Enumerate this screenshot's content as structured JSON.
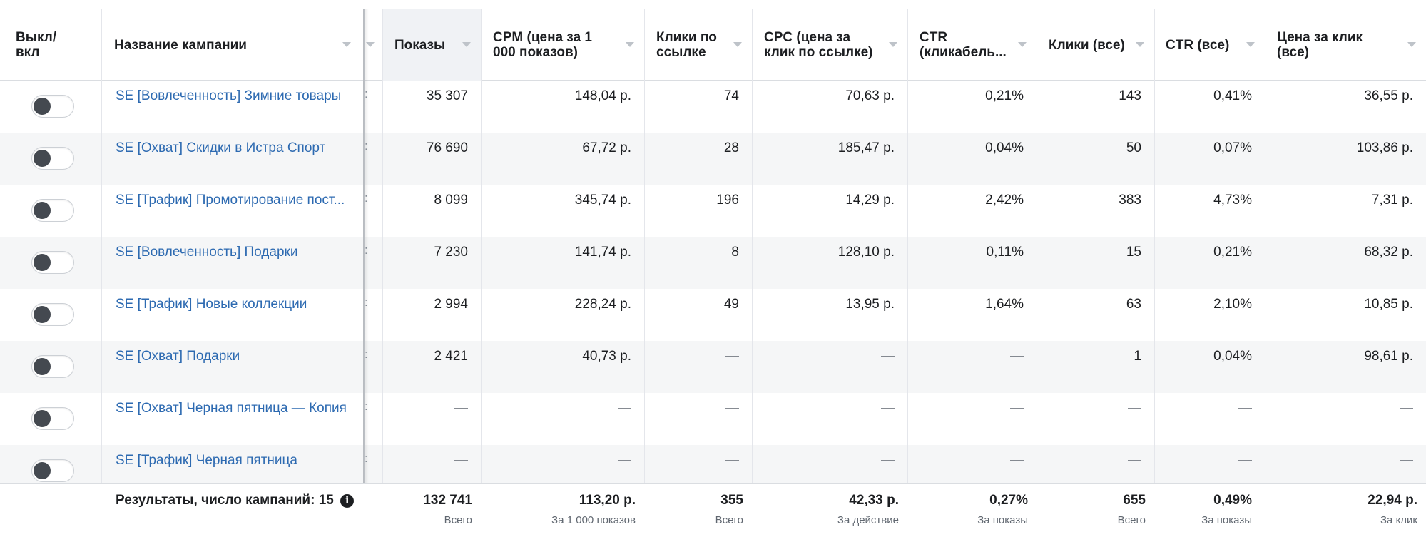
{
  "columns": {
    "toggle": "Выкл/\nвкл",
    "name": "Название кампании",
    "impressions": "Показы",
    "cpm": "CPM (цена за 1\n000 показов)",
    "link_clicks": "Клики по\nссылке",
    "cpc": "CPC (цена за\nклик по ссылке)",
    "ctr": "CTR\n(кликабель...",
    "clicks_all": "Клики (все)",
    "ctr_all": "CTR (все)",
    "cost_per_click": "Цена за клик\n(все)"
  },
  "rows": [
    {
      "name": "SE [Вовлеченность] Зимние товары",
      "impressions": "35 307",
      "cpm": "148,04 р.",
      "link_clicks": "74",
      "cpc": "70,63 р.",
      "ctr": "0,21%",
      "clicks_all": "143",
      "ctr_all": "0,41%",
      "cost_per_click": "36,55 р."
    },
    {
      "name": "SE [Охват] Скидки в Истра Спорт",
      "impressions": "76 690",
      "cpm": "67,72 р.",
      "link_clicks": "28",
      "cpc": "185,47 р.",
      "ctr": "0,04%",
      "clicks_all": "50",
      "ctr_all": "0,07%",
      "cost_per_click": "103,86 р."
    },
    {
      "name": "SE [Трафик] Промотирование пост...",
      "impressions": "8 099",
      "cpm": "345,74 р.",
      "link_clicks": "196",
      "cpc": "14,29 р.",
      "ctr": "2,42%",
      "clicks_all": "383",
      "ctr_all": "4,73%",
      "cost_per_click": "7,31 р."
    },
    {
      "name": "SE [Вовлеченность] Подарки",
      "impressions": "7 230",
      "cpm": "141,74 р.",
      "link_clicks": "8",
      "cpc": "128,10 р.",
      "ctr": "0,11%",
      "clicks_all": "15",
      "ctr_all": "0,21%",
      "cost_per_click": "68,32 р."
    },
    {
      "name": "SE [Трафик] Новые коллекции",
      "impressions": "2 994",
      "cpm": "228,24 р.",
      "link_clicks": "49",
      "cpc": "13,95 р.",
      "ctr": "1,64%",
      "clicks_all": "63",
      "ctr_all": "2,10%",
      "cost_per_click": "10,85 р."
    },
    {
      "name": "SE [Охват] Подарки",
      "impressions": "2 421",
      "cpm": "40,73 р.",
      "link_clicks": "—",
      "cpc": "—",
      "ctr": "—",
      "clicks_all": "1",
      "ctr_all": "0,04%",
      "cost_per_click": "98,61 р."
    },
    {
      "name": "SE [Охват] Черная пятница — Копия",
      "impressions": "—",
      "cpm": "—",
      "link_clicks": "—",
      "cpc": "—",
      "ctr": "—",
      "clicks_all": "—",
      "ctr_all": "—",
      "cost_per_click": "—"
    },
    {
      "name": "SE [Трафик] Черная пятница",
      "impressions": "—",
      "cpm": "—",
      "link_clicks": "—",
      "cpc": "—",
      "ctr": "—",
      "clicks_all": "—",
      "ctr_all": "—",
      "cost_per_click": "—"
    }
  ],
  "footer": {
    "label": "Результаты, число кампаний: 15",
    "impressions": {
      "value": "132 741",
      "sub": "Всего"
    },
    "cpm": {
      "value": "113,20 р.",
      "sub": "За 1 000 показов"
    },
    "link_clicks": {
      "value": "355",
      "sub": "Всего"
    },
    "cpc": {
      "value": "42,33 р.",
      "sub": "За действие"
    },
    "ctr": {
      "value": "0,27%",
      "sub": "За показы"
    },
    "clicks_all": {
      "value": "655",
      "sub": "Всего"
    },
    "ctr_all": {
      "value": "0,49%",
      "sub": "За показы"
    },
    "cost_per_click": {
      "value": "22,94 р.",
      "sub": "За клик"
    }
  },
  "icons": {
    "toggle": "toggle-switch-icon",
    "sort": "sort-caret-icon",
    "info": "info-icon"
  },
  "colors": {
    "link": "#2d6ab1",
    "row_alt": "#f5f6f7",
    "header_sorted": "#f0f2f5"
  }
}
